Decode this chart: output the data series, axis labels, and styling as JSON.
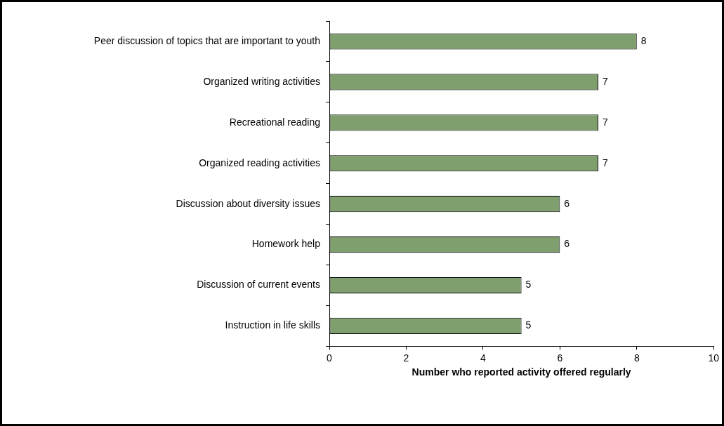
{
  "chart_data": {
    "type": "bar",
    "orientation": "horizontal",
    "xlabel": "Number who reported activity offered regularly",
    "categories": [
      "Peer discussion of topics that are important to youth",
      "Organized writing activities",
      "Recreational reading",
      "Organized reading activities",
      "Discussion about diversity issues",
      "Homework help",
      "Discussion of current events",
      "Instruction in life skills"
    ],
    "values": [
      8,
      7,
      7,
      7,
      6,
      6,
      5,
      5
    ],
    "color": "#7f9f6f",
    "xlim": [
      0,
      10
    ],
    "xticks": [
      0,
      2,
      4,
      6,
      8,
      10
    ],
    "data_labels": true
  }
}
